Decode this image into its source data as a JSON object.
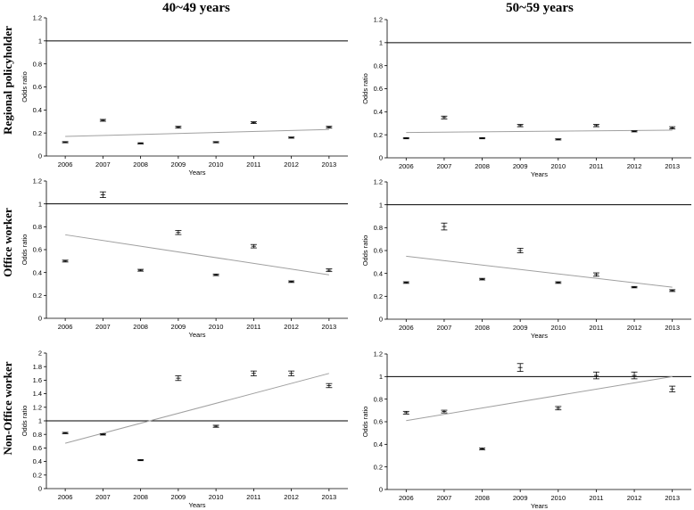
{
  "figure": {
    "column_titles": [
      "40~49 years",
      "50~59 years"
    ],
    "row_titles": [
      "Regional policyholder",
      "Office worker",
      "Non-Office worker"
    ],
    "colors": {
      "axis": "#000000",
      "trend": "#a0a0a0",
      "reference": "#000000"
    }
  },
  "chart_data": [
    {
      "type": "scatter",
      "panel": "Regional policyholder / 40~49 years",
      "xlabel": "Years",
      "ylabel": "Odds ratio",
      "x": [
        "2006",
        "2007",
        "2008",
        "2009",
        "2010",
        "2011",
        "2012",
        "2013"
      ],
      "y": [
        0.12,
        0.31,
        0.11,
        0.25,
        0.12,
        0.29,
        0.16,
        0.25
      ],
      "err": [
        0.005,
        0.008,
        0.005,
        0.008,
        0.005,
        0.008,
        0.005,
        0.008
      ],
      "ylim": [
        0,
        1.2
      ],
      "yticks": [
        "0",
        "0.2",
        "0.4",
        "0.6",
        "0.8",
        "1",
        "1.2"
      ],
      "reference_line": 1,
      "trend": [
        0.17,
        0.23
      ]
    },
    {
      "type": "scatter",
      "panel": "Regional policyholder / 50~59 years",
      "xlabel": "Years",
      "ylabel": "Odds ratio",
      "x": [
        "2006",
        "2007",
        "2008",
        "2009",
        "2010",
        "2011",
        "2012",
        "2013"
      ],
      "y": [
        0.17,
        0.35,
        0.17,
        0.28,
        0.16,
        0.28,
        0.23,
        0.26
      ],
      "err": [
        0.005,
        0.012,
        0.005,
        0.01,
        0.005,
        0.01,
        0.005,
        0.01
      ],
      "ylim": [
        0,
        1.2
      ],
      "yticks": [
        "0",
        "0.2",
        "0.4",
        "0.6",
        "0.8",
        "1",
        "1.2"
      ],
      "reference_line": 1,
      "trend": [
        0.22,
        0.24
      ]
    },
    {
      "type": "scatter",
      "panel": "Office worker / 40~49 years",
      "xlabel": "Years",
      "ylabel": "Odds ratio",
      "x": [
        "2006",
        "2007",
        "2008",
        "2009",
        "2010",
        "2011",
        "2012",
        "2013"
      ],
      "y": [
        0.5,
        1.08,
        0.42,
        0.75,
        0.38,
        0.63,
        0.32,
        0.42
      ],
      "err": [
        0.008,
        0.025,
        0.008,
        0.018,
        0.007,
        0.015,
        0.007,
        0.012
      ],
      "ylim": [
        0,
        1.2
      ],
      "yticks": [
        "0",
        "0.2",
        "0.4",
        "0.6",
        "0.8",
        "1",
        "1.2"
      ],
      "reference_line": 1,
      "trend": [
        0.73,
        0.38
      ]
    },
    {
      "type": "scatter",
      "panel": "Office worker / 50~59 years",
      "xlabel": "Years",
      "ylabel": "Odds ratio",
      "x": [
        "2006",
        "2007",
        "2008",
        "2009",
        "2010",
        "2011",
        "2012",
        "2013"
      ],
      "y": [
        0.32,
        0.81,
        0.35,
        0.6,
        0.32,
        0.39,
        0.28,
        0.25
      ],
      "err": [
        0.007,
        0.03,
        0.007,
        0.02,
        0.007,
        0.015,
        0.006,
        0.008
      ],
      "ylim": [
        0,
        1.2
      ],
      "yticks": [
        "0",
        "0.2",
        "0.4",
        "0.6",
        "0.8",
        "1",
        "1.2"
      ],
      "reference_line": 1,
      "trend": [
        0.55,
        0.28
      ]
    },
    {
      "type": "scatter",
      "panel": "Non-Office worker / 40~49 years",
      "xlabel": "Years",
      "ylabel": "Odds ratio",
      "x": [
        "2006",
        "2007",
        "2008",
        "2009",
        "2010",
        "2011",
        "2012",
        "2013"
      ],
      "y": [
        0.82,
        0.8,
        0.42,
        1.63,
        0.92,
        1.7,
        1.7,
        1.52
      ],
      "err": [
        0.01,
        0.01,
        0.008,
        0.035,
        0.015,
        0.035,
        0.035,
        0.03
      ],
      "ylim": [
        0,
        2
      ],
      "yticks": [
        "0",
        "0.2",
        "0.4",
        "0.6",
        "0.8",
        "1",
        "1.2",
        "1.4",
        "1.6",
        "1.8",
        "2"
      ],
      "reference_line": 1,
      "trend": [
        0.67,
        1.7
      ]
    },
    {
      "type": "scatter",
      "panel": "Non-Office worker / 50~59 years",
      "xlabel": "Years",
      "ylabel": "Odds ratio",
      "x": [
        "2006",
        "2007",
        "2008",
        "2009",
        "2010",
        "2011",
        "2012",
        "2013"
      ],
      "y": [
        0.68,
        0.69,
        0.36,
        1.08,
        0.72,
        1.01,
        1.01,
        0.89
      ],
      "err": [
        0.012,
        0.012,
        0.008,
        0.035,
        0.015,
        0.03,
        0.03,
        0.025
      ],
      "ylim": [
        0,
        1.2
      ],
      "yticks": [
        "0",
        "0.2",
        "0.4",
        "0.6",
        "0.8",
        "1",
        "1.2"
      ],
      "reference_line": 1,
      "trend": [
        0.61,
        1.0
      ]
    }
  ]
}
